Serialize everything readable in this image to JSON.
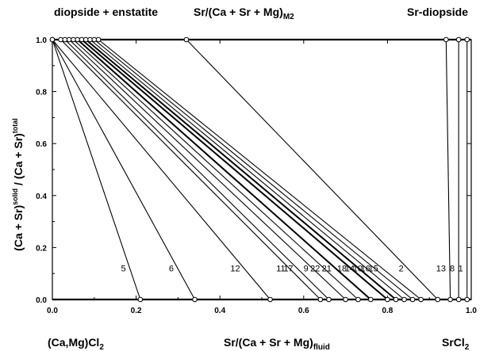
{
  "header": {
    "left": "diopside + enstatite",
    "center": "Sr/(Ca + Sr + Mg)",
    "center_sub": "M2",
    "right": "Sr-diopside"
  },
  "footer": {
    "left": "(Ca,Mg)Cl",
    "left_sub": "2",
    "center": "Sr/(Ca + Sr + Mg)",
    "center_sub": "fluid",
    "right": "SrCl",
    "right_sub": "2"
  },
  "ylabel": {
    "main1": "(Ca + Sr)",
    "sup1": "solid",
    "main2": " / (Ca + Sr)",
    "sup2": "total"
  },
  "chart_data": {
    "type": "line",
    "xlim": [
      0,
      1
    ],
    "ylim": [
      0,
      1
    ],
    "x_ticks": [
      "0.0",
      "0.2",
      "0.4",
      "0.6",
      "0.8",
      "1.0"
    ],
    "y_ticks": [
      "0.0",
      "0.2",
      "0.4",
      "0.6",
      "0.8",
      "1.0"
    ],
    "grid": false,
    "tie_lines": [
      {
        "label": "5",
        "x_top": 0.0,
        "x_bottom": 0.21
      },
      {
        "label": "6",
        "x_top": 0.0,
        "x_bottom": 0.34
      },
      {
        "label": "12",
        "x_top": 0.0,
        "x_bottom": 0.52
      },
      {
        "label": "11",
        "x_top": 0.02,
        "x_bottom": 0.64
      },
      {
        "label": "17",
        "x_top": 0.03,
        "x_bottom": 0.66
      },
      {
        "label": "9",
        "x_top": 0.04,
        "x_bottom": 0.7
      },
      {
        "label": "22",
        "x_top": 0.05,
        "x_bottom": 0.73
      },
      {
        "label": "21",
        "x_top": 0.06,
        "x_bottom": 0.76
      },
      {
        "label": "18",
        "x_top": 0.07,
        "x_bottom": 0.8
      },
      {
        "label": "14",
        "x_top": 0.08,
        "x_bottom": 0.82
      },
      {
        "label": "10",
        "x_top": 0.09,
        "x_bottom": 0.84
      },
      {
        "label": "16",
        "x_top": 0.1,
        "x_bottom": 0.86
      },
      {
        "label": "15",
        "x_top": 0.11,
        "x_bottom": 0.88
      },
      {
        "label": "2",
        "x_top": 0.32,
        "x_bottom": 0.92
      },
      {
        "label": "13",
        "x_top": 0.94,
        "x_bottom": 0.95
      },
      {
        "label": "8",
        "x_top": 0.97,
        "x_bottom": 0.97
      },
      {
        "label": "1",
        "x_top": 0.99,
        "x_bottom": 0.99
      }
    ]
  }
}
